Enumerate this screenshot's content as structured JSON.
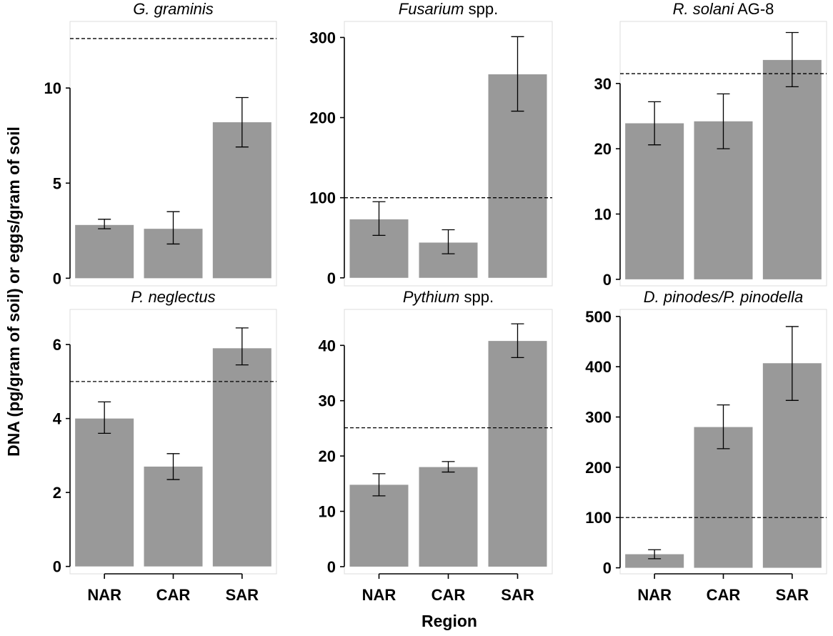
{
  "figure": {
    "ylabel": "DNA (pg/gram of soil) or eggs/gram of soil",
    "xlabel": "Region"
  },
  "colors": {
    "bar": "#999999",
    "panel_border": "#dcdcdc",
    "axis": "#000000"
  },
  "chart_data": [
    {
      "type": "bar",
      "title_parts": [
        {
          "text": "G. graminis",
          "italic": true
        }
      ],
      "categories": [
        "NAR",
        "CAR",
        "SAR"
      ],
      "values": [
        2.8,
        2.6,
        8.2
      ],
      "error": [
        [
          2.6,
          3.1
        ],
        [
          1.8,
          3.5
        ],
        [
          6.9,
          9.5
        ]
      ],
      "threshold": 12.6,
      "ylim": [
        -0.4,
        13.5
      ],
      "yticks": [
        0,
        5,
        10
      ]
    },
    {
      "type": "bar",
      "title_parts": [
        {
          "text": "Fusarium",
          "italic": true
        },
        {
          "text": " spp.",
          "italic": false
        }
      ],
      "categories": [
        "NAR",
        "CAR",
        "SAR"
      ],
      "values": [
        73,
        44,
        254
      ],
      "error": [
        [
          53,
          95
        ],
        [
          30,
          60
        ],
        [
          208,
          301
        ]
      ],
      "threshold": 100,
      "ylim": [
        -10,
        320
      ],
      "yticks": [
        0,
        100,
        200,
        300
      ]
    },
    {
      "type": "bar",
      "title_parts": [
        {
          "text": "R. solani",
          "italic": true
        },
        {
          "text": " AG-8",
          "italic": false
        }
      ],
      "categories": [
        "NAR",
        "CAR",
        "SAR"
      ],
      "values": [
        23.9,
        24.2,
        33.6
      ],
      "error": [
        [
          20.6,
          27.2
        ],
        [
          20.0,
          28.4
        ],
        [
          29.5,
          37.8
        ]
      ],
      "threshold": 31.5,
      "ylim": [
        -1,
        39.5
      ],
      "yticks": [
        0,
        10,
        20,
        30
      ]
    },
    {
      "type": "bar",
      "title_parts": [
        {
          "text": "P. neglectus",
          "italic": true
        }
      ],
      "categories": [
        "NAR",
        "CAR",
        "SAR"
      ],
      "values": [
        4.0,
        2.7,
        5.9
      ],
      "error": [
        [
          3.6,
          4.45
        ],
        [
          2.35,
          3.05
        ],
        [
          5.45,
          6.45
        ]
      ],
      "threshold": 5.0,
      "ylim": [
        -0.2,
        6.95
      ],
      "yticks": [
        0,
        2,
        4,
        6
      ]
    },
    {
      "type": "bar",
      "title_parts": [
        {
          "text": "Pythium",
          "italic": true
        },
        {
          "text": " spp.",
          "italic": false
        }
      ],
      "categories": [
        "NAR",
        "CAR",
        "SAR"
      ],
      "values": [
        14.8,
        18.0,
        40.8
      ],
      "error": [
        [
          12.8,
          16.8
        ],
        [
          17.1,
          19.0
        ],
        [
          37.8,
          43.9
        ]
      ],
      "threshold": 25.1,
      "ylim": [
        -1.3,
        46.5
      ],
      "yticks": [
        0,
        10,
        20,
        30,
        40
      ]
    },
    {
      "type": "bar",
      "title_parts": [
        {
          "text": "D. pinodes/P. pinodella",
          "italic": true
        }
      ],
      "categories": [
        "NAR",
        "CAR",
        "SAR"
      ],
      "values": [
        27,
        280,
        407
      ],
      "error": [
        [
          18,
          36
        ],
        [
          237,
          324
        ],
        [
          333,
          480
        ]
      ],
      "threshold": 100,
      "ylim": [
        -12,
        514
      ],
      "yticks": [
        0,
        100,
        200,
        300,
        400,
        500
      ]
    }
  ]
}
